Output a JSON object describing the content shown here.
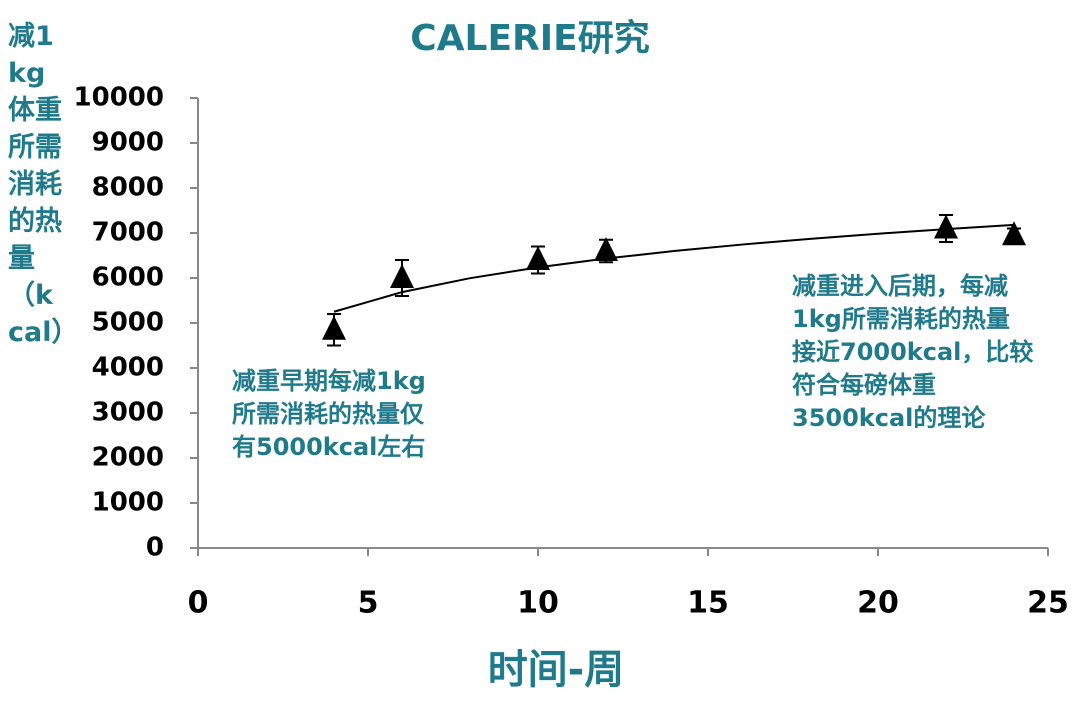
{
  "chart_data": {
    "type": "scatter",
    "title": "CALERIE研究",
    "x_label": "时间-周",
    "y_label": "减1kg体重所需消耗的热量（kcal）",
    "x": [
      4,
      6,
      10,
      12,
      22,
      24
    ],
    "values": [
      4850,
      6000,
      6400,
      6600,
      7100,
      6950
    ],
    "errors": [
      350,
      400,
      300,
      250,
      300,
      150
    ],
    "color": "#000000",
    "trend": {
      "x": [
        4,
        6,
        8,
        10,
        12,
        14,
        16,
        18,
        20,
        22,
        24
      ],
      "values": [
        5250,
        5687,
        5996,
        6237,
        6433,
        6599,
        6743,
        6870,
        6984,
        7086,
        7180
      ]
    },
    "xlim": [
      0,
      25
    ],
    "xticks": [
      0,
      5,
      10,
      15,
      20,
      25
    ],
    "ylim": [
      0,
      10000
    ],
    "yticks": [
      0,
      1000,
      2000,
      3000,
      4000,
      5000,
      6000,
      7000,
      8000,
      9000,
      10000
    ],
    "annotations": [
      {
        "lines": [
          "减重早期每减1kg",
          "所需消耗的热量仅",
          "有5000kcal左右"
        ]
      },
      {
        "lines": [
          "减重进入后期，每减",
          "1kg所需消耗的热量",
          "接近7000kcal，比较",
          "符合每磅体重",
          "3500kcal的理论"
        ]
      }
    ]
  }
}
